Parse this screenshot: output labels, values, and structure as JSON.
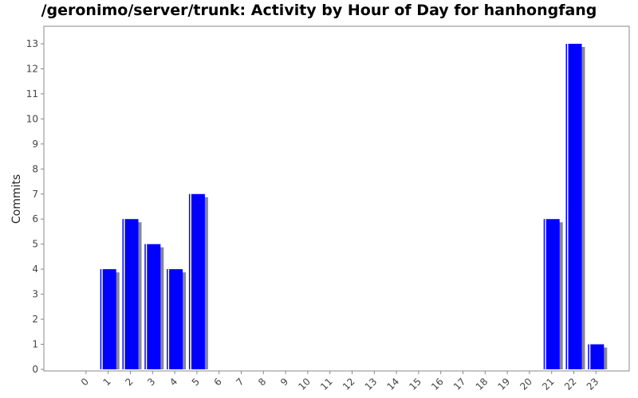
{
  "title": "/geronimo/server/trunk: Activity by Hour of Day for hanhongfang",
  "chart_data": {
    "type": "bar",
    "title": "/geronimo/server/trunk: Activity by Hour of Day for hanhongfang",
    "xlabel": "",
    "ylabel": "Commits",
    "categories": [
      "0",
      "1",
      "2",
      "3",
      "4",
      "5",
      "6",
      "7",
      "8",
      "9",
      "10",
      "11",
      "12",
      "13",
      "14",
      "15",
      "16",
      "17",
      "18",
      "19",
      "20",
      "21",
      "22",
      "23"
    ],
    "values": [
      0,
      4,
      6,
      5,
      4,
      7,
      0,
      0,
      0,
      0,
      0,
      0,
      0,
      0,
      0,
      0,
      0,
      0,
      0,
      0,
      0,
      6,
      13,
      1
    ],
    "ylim": [
      0,
      13
    ],
    "yticks": [
      0,
      1,
      2,
      3,
      4,
      5,
      6,
      7,
      8,
      9,
      10,
      11,
      12,
      13
    ],
    "grid": false,
    "legend": "none",
    "colors": {
      "bar": "#0000ff",
      "bar_shadow": "#888888",
      "bar_highlight": "#ffffff",
      "axis": "#888888"
    }
  }
}
